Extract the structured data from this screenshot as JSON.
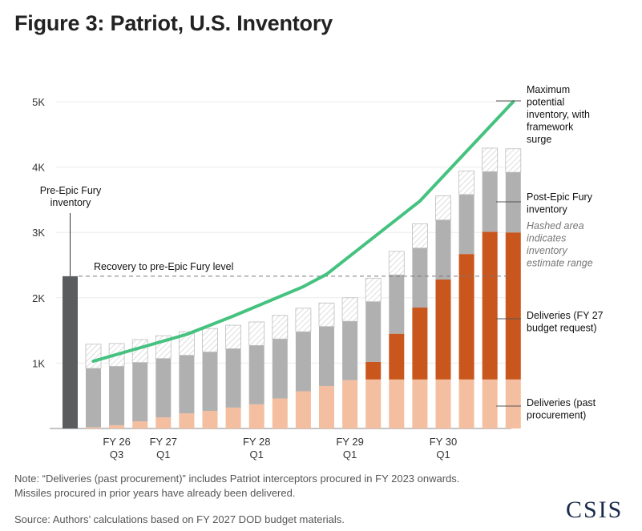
{
  "title": "Figure 3: Patriot, U.S. Inventory",
  "note_line1": "Note: “Deliveries (past procurement)” includes Patriot interceptors procured in FY 2023 onwards.",
  "note_line2": "Missiles procured in prior years have already been delivered.",
  "source": "Source: Authors’ calculations based on FY 2027 DOD budget materials.",
  "logo": "CSIS",
  "colors": {
    "pre_bar": "#5a5c5e",
    "gray": "#b0b0b0",
    "orange": "#c9561c",
    "peach": "#f4bfa0",
    "line": "#45c27f",
    "dashed": "#777777"
  },
  "chart_data": {
    "type": "bar",
    "stacked": true,
    "ylim": [
      0,
      5000
    ],
    "yticks": [
      {
        "value": 1000,
        "label": "1K"
      },
      {
        "value": 2000,
        "label": "2K"
      },
      {
        "value": 3000,
        "label": "3K"
      },
      {
        "value": 4000,
        "label": "4K"
      },
      {
        "value": 5000,
        "label": "5K"
      }
    ],
    "grid": true,
    "xtick_labels": [
      {
        "index": 1,
        "line1": "FY 26",
        "line2": "Q3"
      },
      {
        "index": 3,
        "line1": "FY 27",
        "line2": "Q1"
      },
      {
        "index": 7,
        "line1": "FY 28",
        "line2": "Q1"
      },
      {
        "index": 11,
        "line1": "FY 29",
        "line2": "Q1"
      },
      {
        "index": 15,
        "line1": "FY 30",
        "line2": "Q1"
      }
    ],
    "pre_epic_fury": {
      "value": 2330,
      "label_line1": "Pre-Epic Fury",
      "label_line2": "inventory"
    },
    "recovery_line": {
      "value": 2330,
      "label": "Recovery to pre-Epic Fury level"
    },
    "series": [
      {
        "name": "Deliveries (past procurement)",
        "values": [
          20,
          50,
          110,
          170,
          230,
          270,
          320,
          370,
          460,
          570,
          650,
          740,
          750,
          750,
          750,
          750,
          750,
          750,
          750
        ]
      },
      {
        "name": "Deliveries (FY 27 budget request)",
        "values": [
          0,
          0,
          0,
          0,
          0,
          0,
          0,
          0,
          0,
          0,
          0,
          0,
          270,
          700,
          1100,
          1530,
          1920,
          2260,
          2250
        ]
      },
      {
        "name": "Post-Epic Fury inventory",
        "values": [
          900,
          900,
          900,
          900,
          890,
          900,
          900,
          900,
          910,
          910,
          910,
          900,
          920,
          900,
          910,
          910,
          910,
          920,
          920
        ]
      },
      {
        "name": "Hashed area indicates inventory estimate range",
        "values": [
          370,
          350,
          350,
          350,
          360,
          360,
          360,
          360,
          360,
          360,
          360,
          360,
          360,
          360,
          370,
          370,
          360,
          360,
          360
        ]
      }
    ],
    "line_series": {
      "name": "Maximum potential inventory, with framework surge",
      "points": [
        {
          "index": 0,
          "value": 1030
        },
        {
          "index": 4,
          "value": 1440
        },
        {
          "index": 6,
          "value": 1720
        },
        {
          "index": 9,
          "value": 2170
        },
        {
          "index": 10,
          "value": 2360
        },
        {
          "index": 14,
          "value": 3480
        },
        {
          "index": 18,
          "value": 5000
        }
      ]
    },
    "legend": [
      {
        "key": "line",
        "lines": [
          "Maximum",
          "potential",
          "inventory, with",
          "framework",
          "surge"
        ],
        "value": 5000
      },
      {
        "key": "gray",
        "lines": [
          "Post-Epic Fury",
          "inventory"
        ],
        "value": 3470
      },
      {
        "key": "hatch",
        "lines": [
          "Hashed area",
          "indicates",
          "inventory",
          "estimate range"
        ]
      },
      {
        "key": "orange",
        "lines": [
          "Deliveries (FY 27",
          "budget request)"
        ],
        "value": 1650
      },
      {
        "key": "peach",
        "lines": [
          "Deliveries (past",
          "procurement)"
        ],
        "value": 330
      }
    ]
  }
}
